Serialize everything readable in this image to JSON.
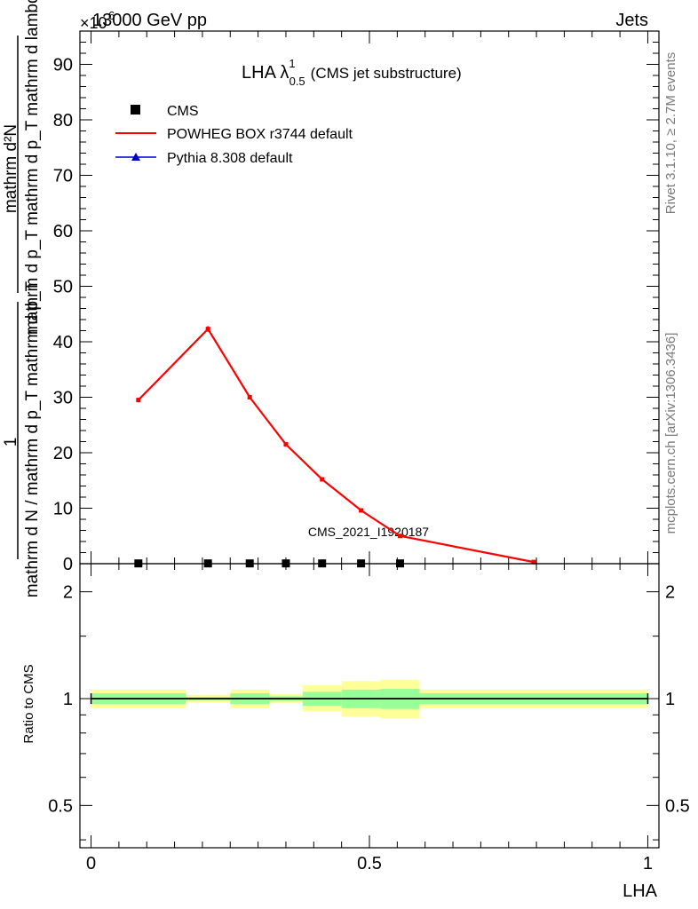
{
  "header": {
    "left": "13000 GeV pp",
    "right": "Jets",
    "exponent_prefix": "×10",
    "exponent": "6"
  },
  "side_labels": {
    "rivet": "Rivet 3.1.10, ≥ 2.7M events",
    "mcplots": "mcplots.cern.ch [arXiv:1306.3436]"
  },
  "watermark": "CMS_2021_I1920187",
  "chart_data": [
    {
      "type": "line",
      "title_main": "LHA λ",
      "title_sup": "1",
      "title_sub": "0.5",
      "title_suffix": "(CMS jet substructure)",
      "ylabel_numerator": "mathrm d²N",
      "ylabel_fraction": "mathrm d p_T mathrm d p_T mathrm d lambda",
      "ylabel_prefix_num": "1",
      "ylabel_prefix_den": "mathrm d N / mathrm d p_T mathrm d p_T",
      "ylabel_sub_t": "T",
      "ylim": [
        0,
        96
      ],
      "yticks": [
        0,
        10,
        20,
        30,
        40,
        50,
        60,
        70,
        80,
        90
      ],
      "xlim": [
        -0.02,
        1.02
      ],
      "legend_position": "top-left",
      "legend": [
        {
          "name": "CMS",
          "marker": "square",
          "color": "#000000"
        },
        {
          "name": "POWHEG BOX r3744 default",
          "marker": "line",
          "color": "#ff0000"
        },
        {
          "name": "Pythia 8.308 default",
          "marker": "triangle",
          "color": "#0000cc"
        }
      ],
      "series": [
        {
          "name": "POWHEG BOX r3744 default",
          "color": "#ff0000",
          "x": [
            0.085,
            0.21,
            0.285,
            0.35,
            0.415,
            0.485,
            0.555,
            0.795
          ],
          "y": [
            29.5,
            42.3,
            30.0,
            21.5,
            15.2,
            9.6,
            5.0,
            0.3
          ],
          "err": [
            0.4,
            0.5,
            0.4,
            0.3,
            0.3,
            0.3,
            0.2,
            0.1
          ]
        },
        {
          "name": "CMS",
          "color": "#000000",
          "x": [
            0.085,
            0.21,
            0.285,
            0.35,
            0.415,
            0.485,
            0.555
          ],
          "y": [
            0.05,
            0.05,
            0.05,
            0.05,
            0.05,
            0.05,
            0.05
          ]
        }
      ]
    },
    {
      "type": "area",
      "ylabel": "Ratio to CMS",
      "xlabel": "LHA",
      "ylim": [
        0.38,
        2.4
      ],
      "yscale": "log",
      "yticks": [
        0.5,
        1,
        2
      ],
      "ytick_labels": [
        "0.5",
        "1",
        "2"
      ],
      "xlim": [
        -0.02,
        1.02
      ],
      "xticks": [
        0,
        0.5,
        1
      ],
      "xtick_labels": [
        "0",
        "0.5",
        "1"
      ],
      "bands": {
        "bin_edges": [
          0.0,
          0.17,
          0.25,
          0.32,
          0.38,
          0.45,
          0.52,
          0.59,
          1.0
        ],
        "outer_low": [
          0.94,
          0.975,
          0.94,
          0.97,
          0.92,
          0.89,
          0.88,
          0.94
        ],
        "outer_high": [
          1.06,
          1.025,
          1.06,
          1.03,
          1.09,
          1.12,
          1.13,
          1.06
        ],
        "inner_low": [
          0.965,
          0.99,
          0.965,
          0.985,
          0.955,
          0.94,
          0.935,
          0.965
        ],
        "inner_high": [
          1.035,
          1.01,
          1.035,
          1.015,
          1.045,
          1.06,
          1.065,
          1.035
        ]
      },
      "reference": 1
    }
  ]
}
